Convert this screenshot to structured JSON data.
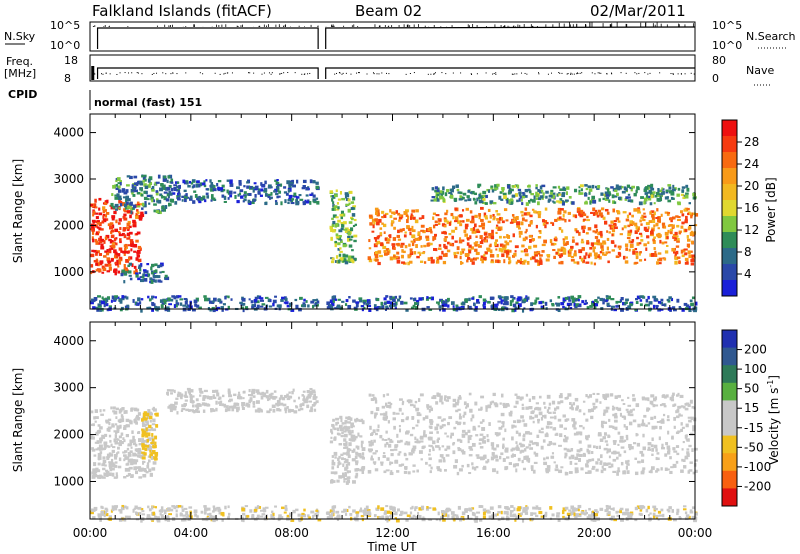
{
  "header": {
    "title": "Falkland Islands (fitACF)",
    "beam": "Beam 02",
    "date": "02/Mar/2011"
  },
  "top_panels": {
    "nsky_label": "N.Sky",
    "nsearch_label": "N.Search",
    "ticks_log": [
      "10^5",
      "10^0"
    ],
    "freq_label": "Freq.",
    "freq_unit": "[MHz]",
    "freq_ticks": [
      "18",
      "8"
    ],
    "nave_label": "Nave",
    "nave_ticks": [
      "80",
      "0"
    ],
    "cpid_label": "CPID",
    "cpid_value": "normal (fast) 151",
    "data_gap_hours": [
      9.05,
      9.35
    ]
  },
  "axes": {
    "ylabel": "Slant Range [km]",
    "yticks": [
      "4000",
      "3000",
      "2000",
      "1000"
    ],
    "xticks": [
      "00:00",
      "04:00",
      "08:00",
      "12:00",
      "16:00",
      "20:00",
      "00:00"
    ],
    "xlabel": "Time UT"
  },
  "power_colorbar": {
    "label": "Power [dB]",
    "ticks": [
      "28",
      "24",
      "20",
      "16",
      "12",
      "8",
      "4"
    ],
    "colors": [
      "#ee1010",
      "#f63a10",
      "#f86a10",
      "#f89a18",
      "#f2b820",
      "#e0d830",
      "#80c840",
      "#2e8c58",
      "#2c6a88",
      "#2a48a8",
      "#1a20d8"
    ]
  },
  "velocity_colorbar": {
    "label": "Velocity [m s",
    "label_sup": "-1",
    "label_end": "]",
    "ticks": [
      "200",
      "100",
      "50",
      "15",
      "-15",
      "-50",
      "-100",
      "-200"
    ],
    "colors": [
      "#2030b0",
      "#305890",
      "#2e7a58",
      "#58b040",
      "#c8c8c8",
      "#c8c8c8",
      "#f0c020",
      "#f8a018",
      "#f86010",
      "#e01010"
    ]
  },
  "chart_data": [
    {
      "type": "heatmap",
      "title": "Power",
      "x_range_hours": [
        0,
        24
      ],
      "ylim_km": [
        200,
        4400
      ],
      "colorbar_range_db": [
        0,
        32
      ],
      "regions": [
        {
          "t": [
            0.0,
            2.0
          ],
          "r": [
            1000,
            2600
          ],
          "power_db": 28
        },
        {
          "t": [
            0.8,
            3.2
          ],
          "r": [
            2300,
            3100
          ],
          "power_db": 8
        },
        {
          "t": [
            1.2,
            3.0
          ],
          "r": [
            800,
            1200
          ],
          "power_db": 6
        },
        {
          "t": [
            3.0,
            9.0
          ],
          "r": [
            2500,
            3000
          ],
          "power_db": 6
        },
        {
          "t": [
            9.5,
            10.5
          ],
          "r": [
            1200,
            2800
          ],
          "power_db": 12
        },
        {
          "t": [
            11.0,
            24.0
          ],
          "r": [
            1200,
            2400
          ],
          "power_db": 24
        },
        {
          "t": [
            13.5,
            24.0
          ],
          "r": [
            2500,
            2900
          ],
          "power_db": 10
        },
        {
          "t": [
            0.0,
            24.0
          ],
          "r": [
            200,
            500
          ],
          "power_db": 6
        }
      ]
    },
    {
      "type": "heatmap",
      "title": "Velocity",
      "x_range_hours": [
        0,
        24
      ],
      "ylim_km": [
        200,
        4400
      ],
      "colorbar_range_ms": [
        -250,
        250
      ],
      "regions": [
        {
          "t": [
            0.0,
            2.5
          ],
          "r": [
            1100,
            2600
          ],
          "velocity_ms": 0
        },
        {
          "t": [
            2.0,
            2.6
          ],
          "r": [
            1500,
            2500
          ],
          "velocity_ms": -60
        },
        {
          "t": [
            3.0,
            9.0
          ],
          "r": [
            2500,
            3000
          ],
          "velocity_ms": 0
        },
        {
          "t": [
            9.5,
            10.8
          ],
          "r": [
            1000,
            2400
          ],
          "velocity_ms": 25
        },
        {
          "t": [
            11.0,
            24.0
          ],
          "r": [
            1200,
            2900
          ],
          "velocity_ms": 0
        },
        {
          "t": [
            0.0,
            24.0
          ],
          "r": [
            200,
            500
          ],
          "velocity_ms": -40
        }
      ]
    }
  ]
}
